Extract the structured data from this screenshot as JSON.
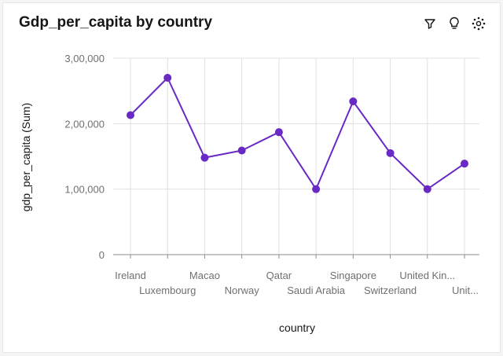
{
  "header": {
    "title": "Gdp_per_capita by country"
  },
  "toolbar": {
    "icons": [
      "filter-icon",
      "lightbulb-icon",
      "settings-icon"
    ]
  },
  "colors": {
    "line": "#6929c4",
    "grid": "#e0e0e0",
    "axis": "#8d8d8d"
  },
  "chart_data": {
    "type": "line",
    "title": "Gdp_per_capita by country",
    "xlabel": "country",
    "ylabel": "gdp_per_capita (Sum)",
    "categories": [
      "Ireland",
      "Luxembourg",
      "Macao",
      "Norway",
      "Qatar",
      "Saudi Arabia",
      "Singapore",
      "Switzerland",
      "United Kin...",
      "Unit..."
    ],
    "series": [
      {
        "values": [
          213000,
          270000,
          148000,
          159000,
          187000,
          100000,
          234000,
          155000,
          100000,
          139000
        ]
      }
    ],
    "ylim": [
      0,
      300000
    ],
    "yticks": [
      0,
      100000,
      200000,
      300000
    ],
    "ytick_labels": [
      "0",
      "1,00,000",
      "2,00,000",
      "3,00,000"
    ],
    "grid": true,
    "legend": "none"
  }
}
